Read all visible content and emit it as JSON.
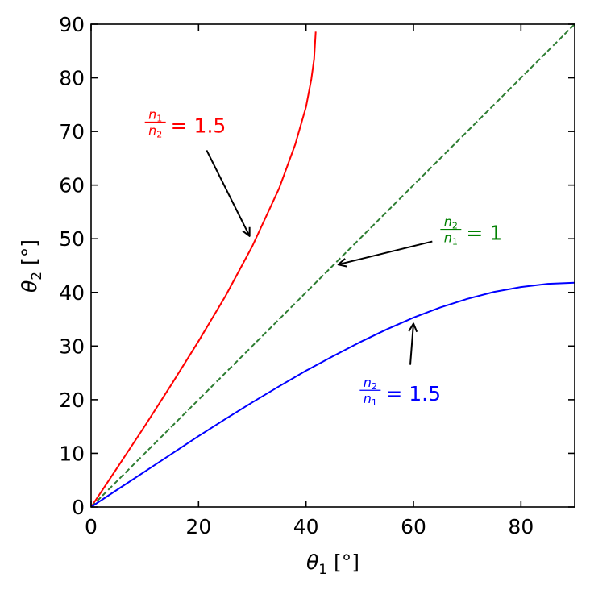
{
  "chart_data": {
    "type": "line",
    "xlabel": {
      "symbol": "θ",
      "sub": "1",
      "unit": " [°]"
    },
    "ylabel": {
      "symbol": "θ",
      "sub": "2",
      "unit": " [°]"
    },
    "xlim": [
      0,
      90
    ],
    "ylim": [
      0,
      90
    ],
    "x_ticks": [
      0,
      20,
      40,
      60,
      80
    ],
    "y_ticks": [
      0,
      10,
      20,
      30,
      40,
      50,
      60,
      70,
      80,
      90
    ],
    "grid": false,
    "series": [
      {
        "id": "red",
        "color": "#ff0000",
        "style": "solid",
        "x": [
          0,
          5,
          10,
          15,
          20,
          25,
          30,
          35,
          38,
          40,
          41,
          41.5,
          41.8
        ],
        "y": [
          0,
          7.5,
          15.1,
          22.9,
          30.9,
          39.3,
          48.6,
          59.4,
          67.6,
          74.6,
          79.8,
          83.5,
          88.6
        ]
      },
      {
        "id": "green",
        "color": "#2e7d32",
        "style": "dashed",
        "x": [
          0,
          90
        ],
        "y": [
          0,
          90
        ]
      },
      {
        "id": "blue",
        "color": "#0000ff",
        "style": "solid",
        "x": [
          0,
          5,
          10,
          15,
          20,
          25,
          30,
          35,
          40,
          45,
          50,
          55,
          60,
          65,
          70,
          75,
          80,
          85,
          90
        ],
        "y": [
          0,
          3.3,
          6.6,
          9.9,
          13.2,
          16.4,
          19.5,
          22.5,
          25.4,
          28.1,
          30.7,
          33.1,
          35.3,
          37.2,
          38.8,
          40.1,
          41.0,
          41.6,
          41.8
        ]
      }
    ],
    "annotations": [
      {
        "id": "red",
        "color": "#ff0000",
        "num": "n1",
        "den": "n2",
        "rhs": "= 1.5",
        "text_at": [
          10,
          71
        ],
        "arrow_from": [
          21.5,
          66.5
        ],
        "arrow_to": [
          29.5,
          50.5
        ]
      },
      {
        "id": "green",
        "color": "#008000",
        "num": "n2",
        "den": "n1",
        "rhs": "= 1",
        "text_at": [
          65,
          51
        ],
        "arrow_from": [
          63.5,
          49.5
        ],
        "arrow_to": [
          46,
          45.2
        ]
      },
      {
        "id": "blue",
        "color": "#0000ff",
        "num": "n2",
        "den": "n1",
        "rhs": "= 1.5",
        "text_at": [
          50,
          21
        ],
        "arrow_from": [
          59.4,
          26.5
        ],
        "arrow_to": [
          60,
          34.2
        ]
      }
    ]
  }
}
